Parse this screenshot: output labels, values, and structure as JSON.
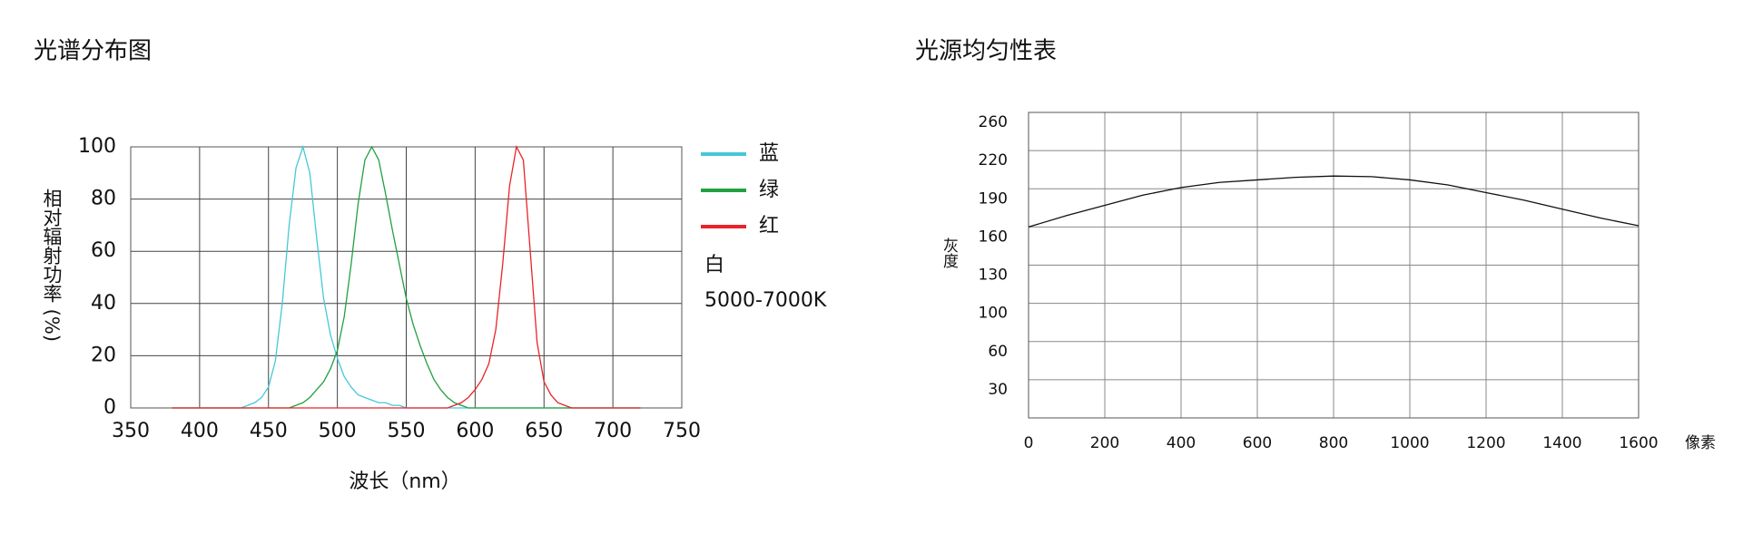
{
  "chart_data": [
    {
      "type": "line",
      "title": "光谱分布图",
      "x_label": "波长（nm）",
      "y_label": "相对辐射功率 (%)",
      "x": [
        380,
        385,
        390,
        395,
        400,
        405,
        410,
        415,
        420,
        425,
        430,
        435,
        440,
        445,
        450,
        455,
        460,
        465,
        470,
        475,
        480,
        485,
        490,
        495,
        500,
        505,
        510,
        515,
        520,
        525,
        530,
        535,
        540,
        545,
        550,
        555,
        560,
        565,
        570,
        575,
        580,
        585,
        590,
        595,
        600,
        605,
        610,
        615,
        620,
        625,
        630,
        635,
        640,
        645,
        650,
        655,
        660,
        665,
        670,
        675,
        680,
        685,
        690,
        695,
        700,
        705,
        710,
        715,
        720
      ],
      "series": [
        {
          "name": "蓝",
          "color": "#45c8d8",
          "values": [
            0,
            0,
            0,
            0,
            0,
            0,
            0,
            0,
            0,
            0,
            0,
            1,
            2,
            4,
            8,
            18,
            40,
            70,
            92,
            100,
            90,
            65,
            42,
            28,
            19,
            12,
            8,
            5,
            4,
            3,
            2,
            2,
            1,
            1,
            0,
            0,
            0,
            0,
            0,
            0,
            0,
            0,
            0,
            0,
            0,
            0,
            0,
            0,
            0,
            0,
            0,
            0,
            0,
            0,
            0,
            0,
            0,
            0,
            0,
            0,
            0,
            0,
            0,
            0,
            0,
            0,
            0,
            0,
            0
          ]
        },
        {
          "name": "绿",
          "color": "#22a040",
          "values": [
            0,
            0,
            0,
            0,
            0,
            0,
            0,
            0,
            0,
            0,
            0,
            0,
            0,
            0,
            0,
            0,
            0,
            0,
            1,
            2,
            4,
            7,
            10,
            15,
            22,
            35,
            55,
            78,
            95,
            100,
            95,
            82,
            68,
            55,
            42,
            32,
            24,
            17,
            11,
            7,
            4,
            2,
            1,
            0,
            0,
            0,
            0,
            0,
            0,
            0,
            0,
            0,
            0,
            0,
            0,
            0,
            0,
            0,
            0,
            0,
            0,
            0,
            0,
            0,
            0,
            0,
            0,
            0,
            0
          ]
        },
        {
          "name": "红",
          "color": "#e8242a",
          "values": [
            0,
            0,
            0,
            0,
            0,
            0,
            0,
            0,
            0,
            0,
            0,
            0,
            0,
            0,
            0,
            0,
            0,
            0,
            0,
            0,
            0,
            0,
            0,
            0,
            0,
            0,
            0,
            0,
            0,
            0,
            0,
            0,
            0,
            0,
            0,
            0,
            0,
            0,
            0,
            0,
            0,
            1,
            2,
            4,
            7,
            11,
            17,
            30,
            55,
            85,
            100,
            95,
            60,
            25,
            10,
            5,
            2,
            1,
            0,
            0,
            0,
            0,
            0,
            0,
            0,
            0,
            0,
            0,
            0
          ]
        }
      ],
      "annotations": [
        "白",
        "5000-7000K"
      ],
      "xlim": [
        350,
        750
      ],
      "xticks": [
        350,
        400,
        450,
        500,
        550,
        600,
        650,
        700,
        750
      ],
      "ylim": [
        0,
        100
      ],
      "yticks": [
        0,
        20,
        40,
        60,
        80,
        100
      ],
      "grid": true,
      "legend": "right"
    },
    {
      "type": "line",
      "title": "光源均匀性表",
      "x_label": "像素",
      "y_label": "灰度",
      "x": [
        0,
        100,
        200,
        300,
        400,
        500,
        600,
        700,
        800,
        900,
        1000,
        1100,
        1200,
        1300,
        1400,
        1500,
        1600
      ],
      "series": [
        {
          "color": "#111111",
          "values": [
            160,
            169,
            177,
            185,
            191,
            195,
            197,
            199,
            200,
            199.5,
            197,
            193,
            187,
            181,
            174,
            167,
            161
          ]
        }
      ],
      "xlim": [
        0,
        1600
      ],
      "xticks": [
        0,
        200,
        400,
        600,
        800,
        1000,
        1200,
        1400,
        1600
      ],
      "ylim": [
        0,
        260
      ],
      "yticks": [
        30,
        60,
        100,
        130,
        160,
        190,
        220,
        260
      ],
      "yscale": "ticks",
      "grid": true
    }
  ]
}
